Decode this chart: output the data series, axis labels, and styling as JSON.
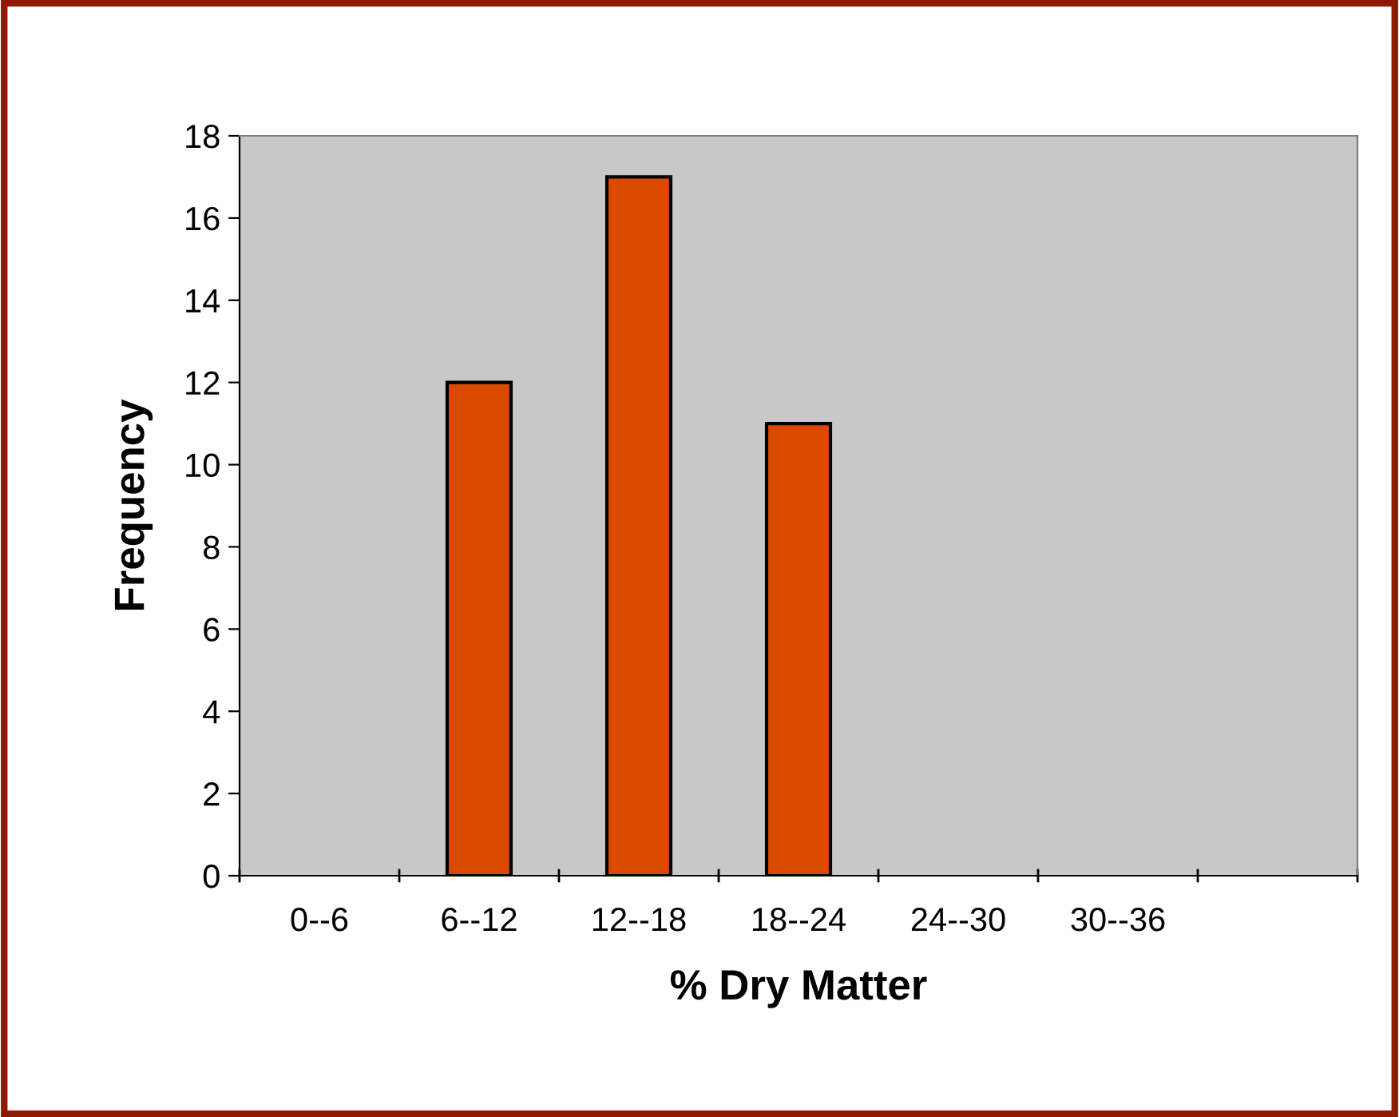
{
  "chart_data": {
    "type": "bar",
    "xlabel": "% Dry Matter",
    "ylabel": "Frequency",
    "categories": [
      "0--6",
      "6--12",
      "12--18",
      "18--24",
      "24--30",
      "30--36",
      null
    ],
    "values": [
      0,
      12,
      17,
      11,
      0,
      0,
      0
    ],
    "color": "#d94a00",
    "ylim": [
      0,
      18
    ],
    "yticks": [
      0,
      2,
      4,
      6,
      8,
      10,
      12,
      14,
      16,
      18
    ],
    "grid": false,
    "legend": false
  }
}
